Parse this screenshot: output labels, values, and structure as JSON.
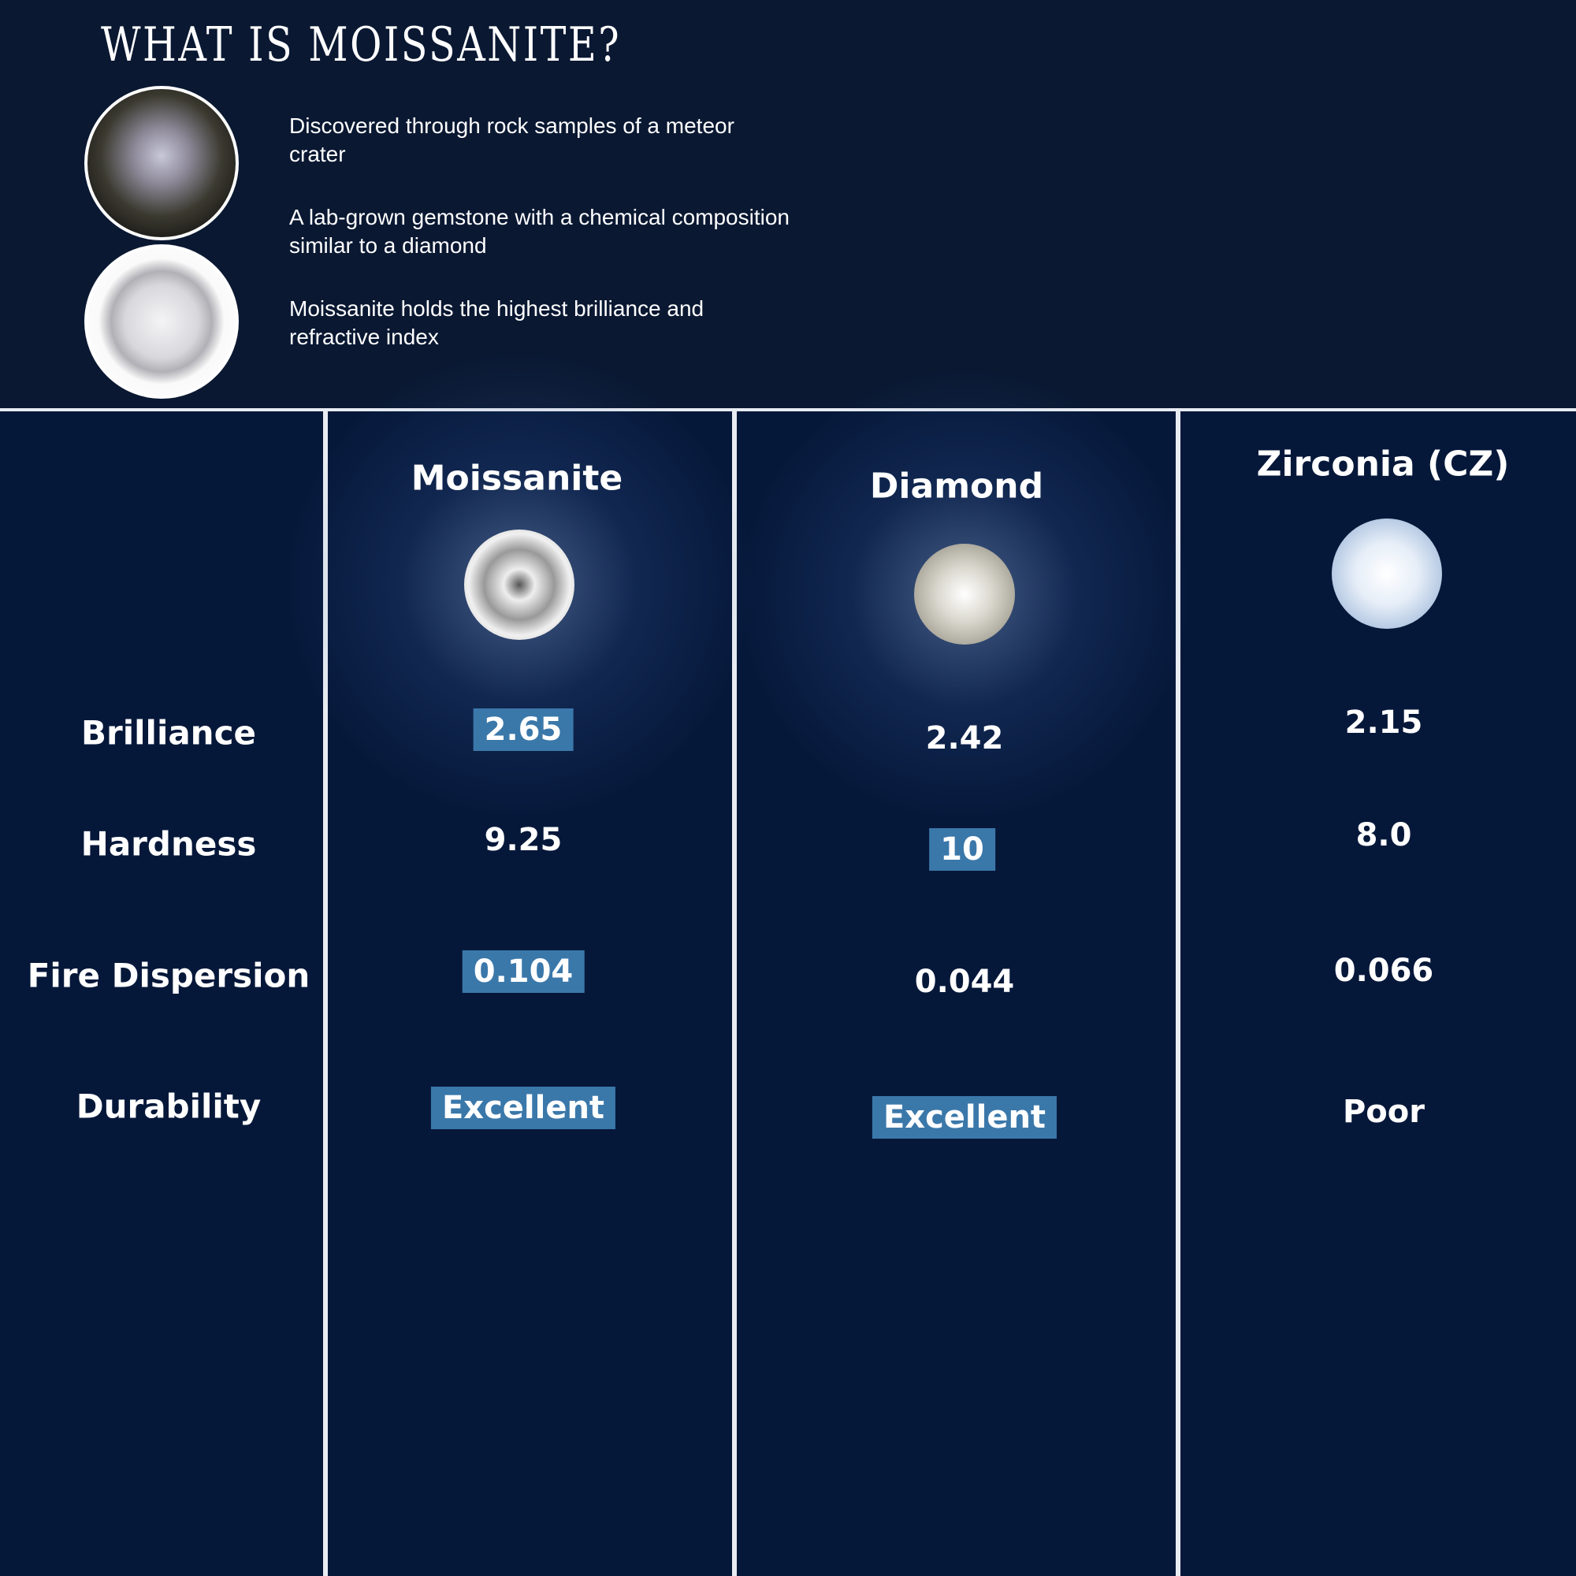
{
  "intro": {
    "title": "WHAT IS MOISSANITE?",
    "facts": [
      "Discovered through rock samples of a meteor crater",
      "A lab-grown gemstone with a chemical composition similar to a diamond",
      "Moissanite holds the highest brilliance and refractive index"
    ],
    "images": [
      "rough-moissanite-crystal",
      "round-cut-moissanite"
    ]
  },
  "comparison": {
    "columns": [
      "Moissanite",
      "Diamond",
      "Zirconia (CZ)"
    ],
    "rows": [
      {
        "label": "Brilliance",
        "values": [
          "2.65",
          "2.42",
          "2.15"
        ],
        "highlight": [
          true,
          false,
          false
        ]
      },
      {
        "label": "Hardness",
        "values": [
          "9.25",
          "10",
          "8.0"
        ],
        "highlight": [
          false,
          true,
          false
        ]
      },
      {
        "label": "Fire Dispersion",
        "values": [
          "0.104",
          "0.044",
          "0.066"
        ],
        "highlight": [
          true,
          false,
          false
        ]
      },
      {
        "label": "Durability",
        "values": [
          "Excellent",
          "Excellent",
          "Poor"
        ],
        "highlight": [
          true,
          true,
          false
        ]
      }
    ]
  },
  "colors": {
    "background": "#06183a",
    "highlight": "#3b78aa",
    "divider": "#e8ecf2"
  }
}
